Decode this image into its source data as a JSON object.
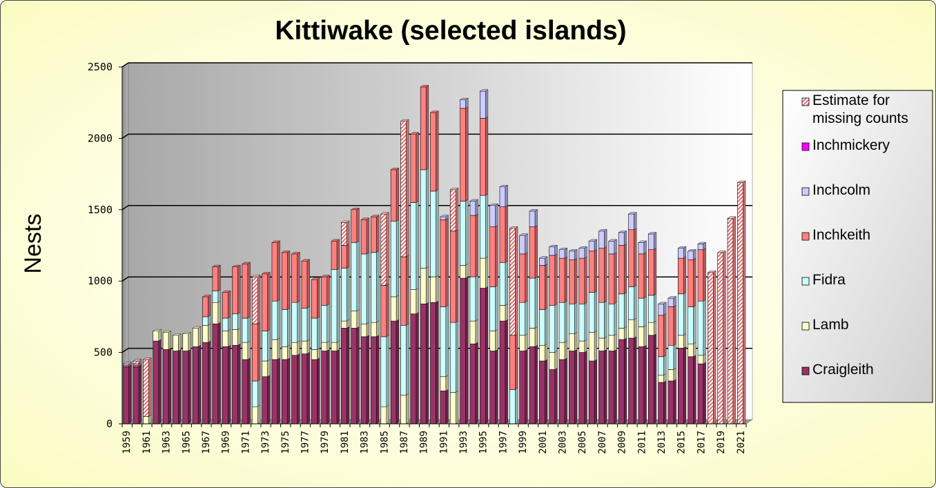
{
  "chart_data": {
    "type": "bar",
    "stacked": true,
    "title": "Kittiwake (selected islands)",
    "ylabel": "Nests",
    "xlabel": "",
    "ylim": [
      0,
      2500
    ],
    "yticks": [
      0,
      500,
      1000,
      1500,
      2000,
      2500
    ],
    "grid": true,
    "legend_position": "right",
    "categories": [
      "1959",
      "1960",
      "1961",
      "1962",
      "1963",
      "1964",
      "1965",
      "1966",
      "1967",
      "1968",
      "1969",
      "1970",
      "1971",
      "1972",
      "1973",
      "1974",
      "1975",
      "1976",
      "1977",
      "1978",
      "1979",
      "1980",
      "1981",
      "1982",
      "1983",
      "1984",
      "1985",
      "1986",
      "1987",
      "1988",
      "1989",
      "1990",
      "1991",
      "1992",
      "1993",
      "1994",
      "1995",
      "1996",
      "1997",
      "1998",
      "1999",
      "2000",
      "2001",
      "2002",
      "2003",
      "2004",
      "2005",
      "2006",
      "2007",
      "2008",
      "2009",
      "2010",
      "2011",
      "2012",
      "2013",
      "2014",
      "2015",
      "2016",
      "2017",
      "2018",
      "2019",
      "2020",
      "2021"
    ],
    "xtick_labels": [
      "1959",
      "1961",
      "1963",
      "1965",
      "1967",
      "1969",
      "1971",
      "1973",
      "1975",
      "1977",
      "1979",
      "1981",
      "1983",
      "1985",
      "1987",
      "1989",
      "1991",
      "1993",
      "1995",
      "1997",
      "1999",
      "2001",
      "2003",
      "2005",
      "2007",
      "2009",
      "2011",
      "2013",
      "2015",
      "2017",
      "2019",
      "2021"
    ],
    "series": [
      {
        "name": "Craigleith",
        "color": "#993366",
        "values": [
          400,
          400,
          0,
          580,
          520,
          510,
          510,
          540,
          570,
          700,
          540,
          550,
          450,
          0,
          330,
          450,
          450,
          480,
          490,
          450,
          510,
          510,
          670,
          670,
          610,
          610,
          0,
          720,
          0,
          770,
          840,
          850,
          230,
          0,
          1020,
          560,
          950,
          510,
          720,
          0,
          510,
          540,
          440,
          380,
          450,
          510,
          500,
          440,
          510,
          510,
          590,
          600,
          540,
          620,
          290,
          300,
          530,
          470,
          420,
          0,
          0,
          0,
          0
        ]
      },
      {
        "name": "Lamb",
        "color": "#ffffcc",
        "values": [
          0,
          0,
          50,
          70,
          120,
          110,
          120,
          130,
          120,
          150,
          110,
          110,
          120,
          120,
          110,
          140,
          90,
          90,
          90,
          70,
          60,
          60,
          50,
          120,
          90,
          100,
          120,
          170,
          200,
          170,
          250,
          180,
          100,
          220,
          90,
          160,
          210,
          140,
          110,
          0,
          110,
          130,
          110,
          120,
          120,
          120,
          80,
          200,
          90,
          110,
          80,
          130,
          140,
          90,
          50,
          80,
          90,
          90,
          60,
          0,
          0,
          0,
          0
        ]
      },
      {
        "name": "Fidra",
        "color": "#ccffff",
        "values": [
          0,
          0,
          0,
          0,
          0,
          0,
          0,
          0,
          60,
          80,
          90,
          110,
          170,
          180,
          210,
          270,
          260,
          280,
          230,
          220,
          260,
          510,
          370,
          480,
          490,
          490,
          490,
          530,
          490,
          610,
          690,
          600,
          490,
          490,
          450,
          310,
          440,
          310,
          300,
          240,
          230,
          350,
          250,
          330,
          280,
          210,
          260,
          280,
          250,
          220,
          240,
          230,
          200,
          190,
          130,
          170,
          290,
          260,
          380,
          0,
          0,
          0,
          0
        ]
      },
      {
        "name": "Inchkeith",
        "color": "#ff8080",
        "values": [
          10,
          10,
          0,
          0,
          0,
          0,
          0,
          0,
          140,
          170,
          180,
          330,
          380,
          400,
          400,
          410,
          400,
          340,
          330,
          270,
          200,
          200,
          160,
          230,
          240,
          250,
          360,
          360,
          480,
          480,
          580,
          550,
          610,
          640,
          650,
          430,
          540,
          420,
          390,
          380,
          340,
          360,
          310,
          350,
          310,
          310,
          320,
          290,
          380,
          350,
          340,
          400,
          310,
          320,
          290,
          270,
          250,
          330,
          360,
          0,
          0,
          0,
          0
        ]
      },
      {
        "name": "Inchcolm",
        "color": "#ccccff",
        "values": [
          10,
          10,
          0,
          0,
          0,
          0,
          0,
          0,
          0,
          0,
          0,
          0,
          0,
          0,
          0,
          0,
          0,
          0,
          0,
          0,
          0,
          0,
          0,
          0,
          0,
          0,
          0,
          0,
          0,
          0,
          0,
          0,
          20,
          0,
          60,
          100,
          190,
          150,
          140,
          0,
          130,
          110,
          50,
          60,
          60,
          60,
          70,
          70,
          120,
          90,
          90,
          110,
          80,
          110,
          80,
          60,
          70,
          60,
          40,
          0,
          0,
          0,
          0
        ]
      },
      {
        "name": "Inchmickery",
        "color": "#ff00ff",
        "values": [
          0,
          0,
          0,
          0,
          0,
          0,
          0,
          0,
          0,
          0,
          0,
          0,
          0,
          0,
          0,
          0,
          0,
          0,
          0,
          0,
          0,
          0,
          0,
          0,
          0,
          0,
          0,
          0,
          0,
          0,
          0,
          0,
          0,
          0,
          0,
          0,
          0,
          0,
          0,
          0,
          0,
          0,
          0,
          0,
          0,
          0,
          0,
          0,
          0,
          0,
          0,
          0,
          0,
          0,
          0,
          0,
          0,
          0,
          0,
          0,
          0,
          0,
          0
        ]
      },
      {
        "name": "Estimate for missing counts",
        "color": "#ff9999",
        "pattern": "hatch",
        "values": [
          0,
          20,
          400,
          0,
          0,
          0,
          0,
          0,
          0,
          0,
          0,
          0,
          0,
          330,
          0,
          0,
          0,
          0,
          0,
          0,
          0,
          0,
          160,
          0,
          0,
          0,
          500,
          0,
          950,
          0,
          0,
          0,
          0,
          290,
          0,
          0,
          0,
          0,
          0,
          750,
          0,
          0,
          0,
          0,
          0,
          0,
          0,
          0,
          0,
          0,
          0,
          0,
          0,
          0,
          0,
          0,
          0,
          0,
          0,
          1060,
          1200,
          1440,
          1690
        ]
      }
    ]
  }
}
